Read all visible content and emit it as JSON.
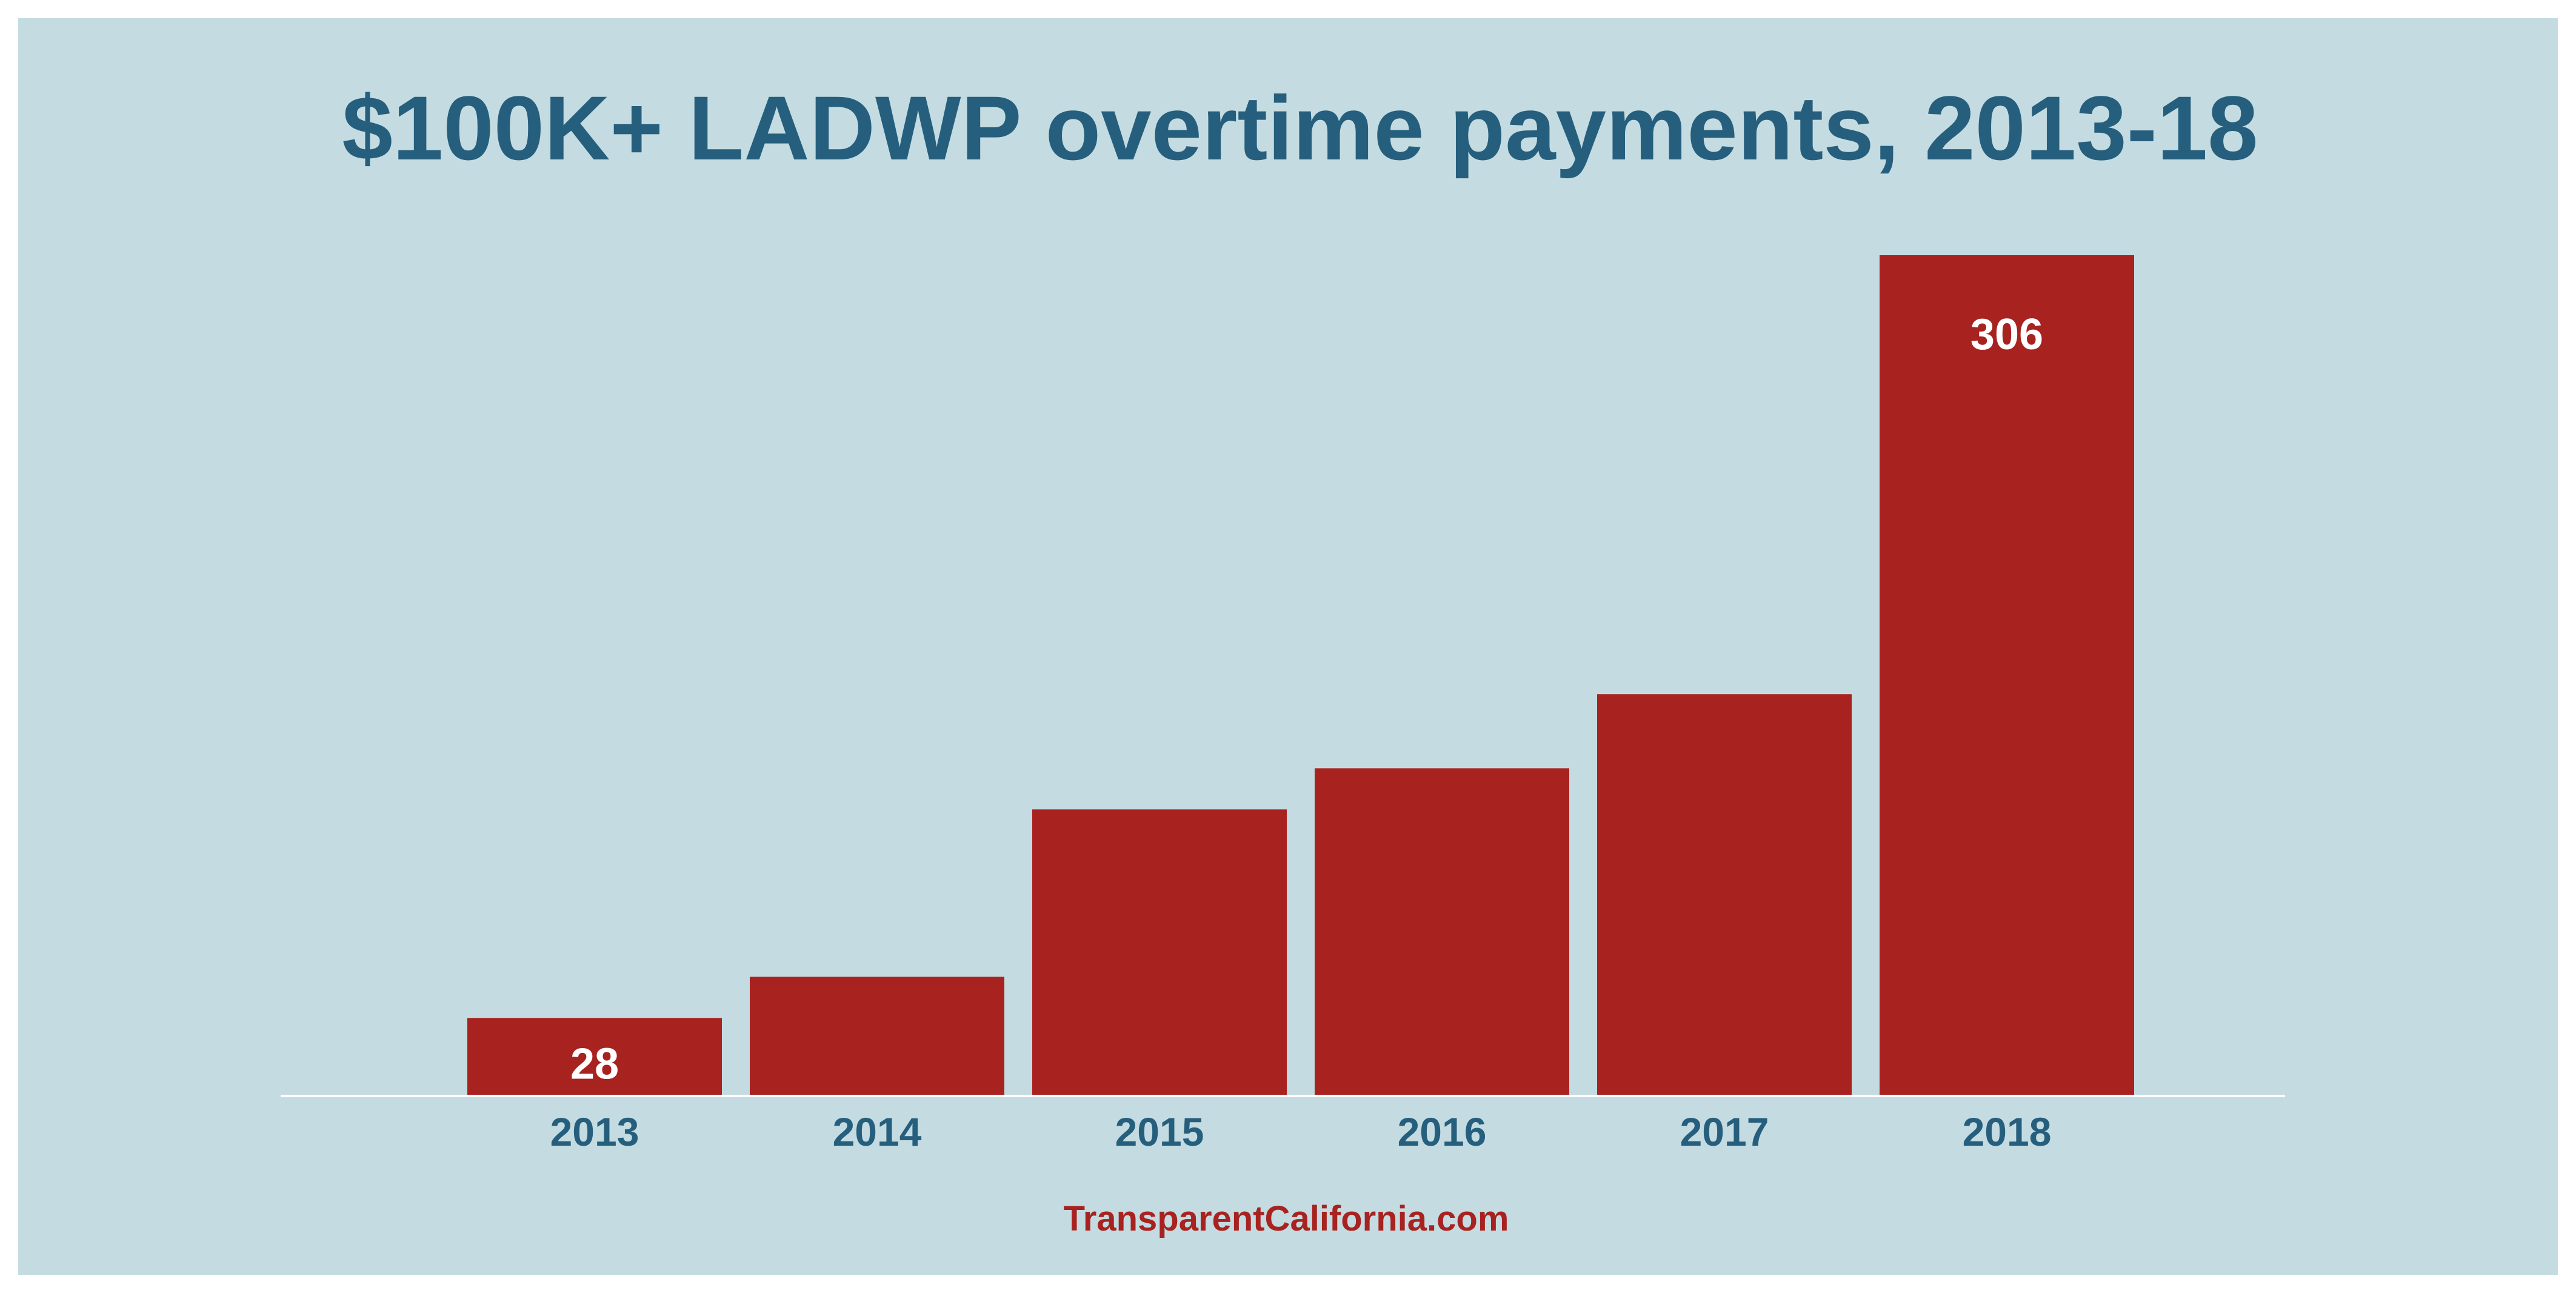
{
  "chart_data": {
    "type": "bar",
    "title": "$100K+ LADWP overtime payments, 2013-18",
    "categories": [
      "2013",
      "2014",
      "2015",
      "2016",
      "2017",
      "2018"
    ],
    "values": [
      28,
      43,
      104,
      119,
      146,
      306
    ],
    "data_labels": [
      "28",
      "",
      "",
      "",
      "",
      "306"
    ],
    "ylim": [
      0,
      306
    ],
    "xlabel": "",
    "ylabel": "",
    "grid": false,
    "legend": "none",
    "colors": {
      "background": "#c4dce1",
      "bar": "#a82220",
      "text": "#265f7d",
      "baseline": "#ffffff"
    }
  },
  "source": "TransparentCalifornia.com"
}
